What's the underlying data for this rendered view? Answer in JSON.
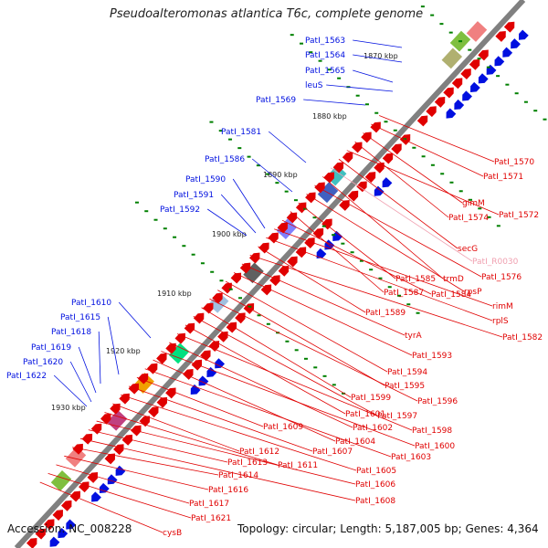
{
  "title": "Pseudoalteromonas atlantica T6c, complete genome",
  "footer": {
    "accession": "Accession: NC_008228",
    "summary": "Topology: circular; Length: 5,187,005 bp; Genes: 4,364"
  },
  "colors": {
    "forward_gene": "#e00000",
    "reverse_gene": "#0010e0",
    "rna_gene": "#f0a0b0",
    "kbp_tick": "#008000",
    "backbone": "#808080"
  },
  "kbp_marks": [
    "1870 kbp",
    "1880 kbp",
    "1890 kbp",
    "1900 kbp",
    "1910 kbp",
    "1920 kbp",
    "1930 kbp"
  ],
  "left_labels": [
    "PatI_1563",
    "PatI_1564",
    "PatI_1565",
    "leuS",
    "PatI_1569",
    "PatI_1581",
    "PatI_1586",
    "PatI_1590",
    "PatI_1591",
    "PatI_1592",
    "PatI_1610",
    "PatI_1615",
    "PatI_1618",
    "PatI_1619",
    "PatI_1620",
    "PatI_1622"
  ],
  "right_labels": [
    "PatI_1570",
    "PatI_1571",
    "glmM",
    "PatI_1574",
    "PatI_1572",
    "secG",
    "PatI_R0030",
    "trmD",
    "PatI_1576",
    "rpsP",
    "PatI_1585",
    "PatI_1587",
    "PatI_1584",
    "rimM",
    "rplS",
    "PatI_1589",
    "PatI_1582",
    "tyrA",
    "PatI_1593",
    "PatI_1594",
    "PatI_1595",
    "PatI_1596",
    "PatI_1599",
    "PatI_1597",
    "PatI_1601",
    "PatI_1598",
    "PatI_1602",
    "PatI_1600",
    "PatI_1604",
    "PatI_1603",
    "PatI_1609",
    "PatI_1607",
    "PatI_1605",
    "PatI_1612",
    "PatI_1611",
    "PatI_1606",
    "PatI_1613",
    "PatI_1608",
    "PatI_1614",
    "PatI_1616",
    "PatI_1617",
    "PatI_1621",
    "cysB"
  ]
}
